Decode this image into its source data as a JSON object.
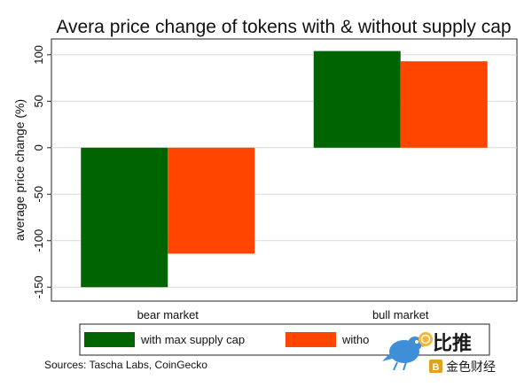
{
  "chart_data": {
    "type": "bar",
    "title": "Avera price change of tokens with & without supply cap",
    "xlabel": "",
    "ylabel": "average price change (%)",
    "categories": [
      "bear market",
      "bull market"
    ],
    "series": [
      {
        "name": "with max supply cap",
        "values": [
          -150,
          104
        ],
        "color": "#006400"
      },
      {
        "name": "without supply cap",
        "values": [
          -114,
          93
        ],
        "color": "#ff4500"
      }
    ],
    "ylim": [
      -165,
      117
    ],
    "yticks": [
      100,
      50,
      0,
      -50,
      -100,
      -150
    ],
    "grid": true,
    "legend_position": "bottom"
  },
  "legend": {
    "items": [
      "with max supply cap",
      "witho"
    ]
  },
  "source_note": "Sources: Tascha Labs, CoinGecko",
  "watermark": {
    "line1": "比推",
    "line2": "金色财经"
  }
}
